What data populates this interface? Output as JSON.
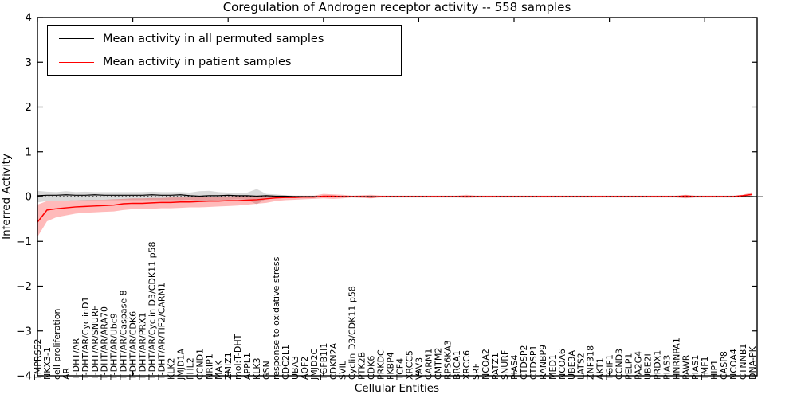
{
  "legend": {
    "items": [
      {
        "label": "Mean activity in all permuted samples",
        "color": "#000000"
      },
      {
        "label": "Mean activity in patient samples",
        "color": "#ff0000"
      }
    ]
  },
  "chart_data": {
    "type": "line",
    "title": "Coregulation of Androgen receptor activity -- 558 samples",
    "xlabel": "Cellular Entities",
    "ylabel": "Inferred Activity",
    "ylim": [
      -4,
      4
    ],
    "yticks": [
      4,
      3,
      2,
      1,
      0,
      -1,
      -2,
      -3,
      -4
    ],
    "xtick_step": 10,
    "grid": false,
    "legend_position": "upper left",
    "zero_line": {
      "style": "dotted",
      "color": "#000000",
      "y": 0
    },
    "categories": [
      "TMPRSS2",
      "NKX3-1",
      "cell proliferation",
      "AR",
      "T-DHT/AR",
      "T-DHT/AR/CyclinD1",
      "T-DHT/AR/SNURF",
      "T-DHT/AR/ARA70",
      "T-DHT/AR/Ubc9",
      "T-DHT/AR/Caspase 8",
      "T-DHT/AR/CDK6",
      "T-DHT/AR/PRX1",
      "T-DHT/AR/Cyclin D3/CDK11 p58",
      "T-DHT/AR/TIF2/CARM1",
      "KLK2",
      "JMJD1A",
      "FHL2",
      "CCND1",
      "NRIP1",
      "MAK",
      "ZMIZ1",
      "mol:T-DHT",
      "APPL1",
      "KLK3",
      "GSN",
      "response to oxidative stress",
      "CDC2L1",
      "UBA3",
      "AOF2",
      "JMJD2C",
      "TGFB1I1",
      "CDKN2A",
      "SVIL",
      "Cyclin D3/CDK11 p58",
      "PTK2B",
      "CDK6",
      "PRKDC",
      "FKBP4",
      "TCF4",
      "XRCC5",
      "VAV3",
      "CARM1",
      "CMTM2",
      "RPS6KA3",
      "BRCA1",
      "XRCC6",
      "SRF",
      "NCOA2",
      "PATZ1",
      "SNURF",
      "PIAS4",
      "CTDSP2",
      "CTDSP1",
      "RANBP9",
      "MED1",
      "NCOA6",
      "UBE3A",
      "LATS2",
      "ZNF318",
      "AKT1",
      "TGIF1",
      "CCND3",
      "PELP1",
      "PA2G4",
      "UBE2I",
      "PRDX1",
      "PIAS3",
      "HNRNPA1",
      "PAWR",
      "PIAS1",
      "TMF1",
      "HIP1",
      "CASP8",
      "NCOA4",
      "CTNNB1",
      "DNA-PK"
    ],
    "series": [
      {
        "name": "Mean activity in all permuted samples",
        "color": "#000000",
        "line_width": 1.2,
        "values": [
          0.02,
          0.03,
          0.03,
          0.04,
          0.03,
          0.03,
          0.04,
          0.03,
          0.03,
          0.03,
          0.03,
          0.03,
          0.04,
          0.03,
          0.03,
          0.04,
          0.02,
          0.01,
          0.02,
          0.02,
          0.03,
          0.02,
          0.02,
          0.01,
          0.02,
          0.01,
          0.01,
          0,
          0,
          0,
          0,
          0,
          0,
          0,
          0,
          0,
          0,
          0,
          0,
          0,
          0,
          0,
          0,
          0,
          0,
          0,
          0,
          0,
          0,
          0,
          0,
          0,
          0,
          0,
          0,
          0,
          0,
          0,
          0,
          0,
          0,
          0,
          0,
          0,
          0,
          0,
          0,
          0,
          0,
          0,
          0,
          0,
          0,
          0,
          0,
          0
        ],
        "band_fill": "rgba(0,0,0,0.15)",
        "band_lower": [
          -0.13,
          -0.1,
          -0.09,
          -0.1,
          -0.08,
          -0.09,
          -0.08,
          -0.08,
          -0.08,
          -0.08,
          -0.08,
          -0.08,
          -0.08,
          -0.08,
          -0.08,
          -0.08,
          -0.07,
          -0.1,
          -0.09,
          -0.08,
          -0.07,
          -0.06,
          -0.07,
          -0.17,
          -0.05,
          -0.04,
          -0.03,
          -0.02,
          -0.02,
          -0.02,
          -0.02,
          -0.02,
          -0.02,
          -0.02,
          -0.02,
          -0.02,
          -0.02,
          -0.02,
          -0.02,
          -0.02,
          -0.02,
          -0.02,
          -0.02,
          -0.02,
          -0.02,
          -0.02,
          -0.02,
          -0.02,
          -0.02,
          -0.02,
          -0.02,
          -0.02,
          -0.02,
          -0.02,
          -0.02,
          -0.02,
          -0.02,
          -0.02,
          -0.02,
          -0.02,
          -0.02,
          -0.02,
          -0.02,
          -0.02,
          -0.02,
          -0.02,
          -0.02,
          -0.02,
          -0.03,
          -0.02,
          -0.02,
          -0.02,
          -0.02,
          -0.02,
          -0.02,
          -0.02
        ],
        "band_upper": [
          0.13,
          0.11,
          0.1,
          0.12,
          0.1,
          0.11,
          0.1,
          0.1,
          0.1,
          0.1,
          0.1,
          0.1,
          0.11,
          0.1,
          0.1,
          0.1,
          0.09,
          0.12,
          0.13,
          0.1,
          0.09,
          0.08,
          0.09,
          0.17,
          0.06,
          0.05,
          0.03,
          0.02,
          0.02,
          0.02,
          0.02,
          0.02,
          0.02,
          0.02,
          0.02,
          0.02,
          0.02,
          0.02,
          0.02,
          0.02,
          0.02,
          0.02,
          0.02,
          0.02,
          0.02,
          0.02,
          0.02,
          0.02,
          0.02,
          0.02,
          0.02,
          0.02,
          0.02,
          0.02,
          0.02,
          0.02,
          0.02,
          0.02,
          0.02,
          0.02,
          0.02,
          0.02,
          0.02,
          0.02,
          0.02,
          0.02,
          0.02,
          0.02,
          0.03,
          0.02,
          0.02,
          0.02,
          0.02,
          0.02,
          0.02,
          0.02
        ]
      },
      {
        "name": "Mean activity in patient samples",
        "color": "#ff0000",
        "line_width": 1.5,
        "values": [
          -0.57,
          -0.3,
          -0.27,
          -0.25,
          -0.23,
          -0.22,
          -0.21,
          -0.2,
          -0.19,
          -0.16,
          -0.15,
          -0.15,
          -0.14,
          -0.13,
          -0.13,
          -0.12,
          -0.12,
          -0.11,
          -0.1,
          -0.1,
          -0.09,
          -0.09,
          -0.08,
          -0.07,
          -0.05,
          -0.03,
          -0.02,
          -0.02,
          -0.01,
          -0.01,
          0.01,
          0.01,
          0,
          0,
          0,
          -0.01,
          0,
          0,
          0,
          0,
          0,
          0,
          0,
          0,
          0,
          0,
          0,
          0,
          0,
          0,
          0,
          0,
          0,
          0,
          0,
          0,
          0,
          0,
          0,
          0,
          0,
          0,
          0,
          0,
          0,
          0,
          0,
          0,
          0.01,
          0,
          0,
          0,
          0,
          0,
          0.02,
          0.05
        ],
        "band_fill": "rgba(255,0,0,0.27)",
        "band_lower": [
          -0.9,
          -0.55,
          -0.46,
          -0.42,
          -0.38,
          -0.36,
          -0.35,
          -0.34,
          -0.33,
          -0.3,
          -0.28,
          -0.28,
          -0.27,
          -0.26,
          -0.26,
          -0.25,
          -0.24,
          -0.24,
          -0.23,
          -0.22,
          -0.21,
          -0.2,
          -0.18,
          -0.16,
          -0.14,
          -0.1,
          -0.08,
          -0.07,
          -0.06,
          -0.05,
          -0.04,
          -0.05,
          -0.04,
          -0.02,
          -0.03,
          -0.04,
          -0.02,
          -0.02,
          -0.02,
          -0.02,
          -0.02,
          -0.02,
          -0.02,
          -0.02,
          -0.02,
          -0.03,
          -0.02,
          -0.02,
          -0.02,
          -0.02,
          -0.02,
          -0.02,
          -0.02,
          -0.02,
          -0.02,
          -0.02,
          -0.02,
          -0.02,
          -0.02,
          -0.02,
          -0.02,
          -0.02,
          -0.02,
          -0.02,
          -0.02,
          -0.02,
          -0.02,
          -0.02,
          -0.04,
          -0.02,
          -0.02,
          -0.02,
          -0.02,
          -0.02,
          -0.01,
          0
        ],
        "band_upper": [
          -0.18,
          -0.1,
          -0.1,
          -0.09,
          -0.08,
          -0.08,
          -0.07,
          -0.07,
          -0.06,
          -0.05,
          -0.04,
          -0.04,
          -0.03,
          -0.03,
          -0.02,
          -0.02,
          -0.02,
          -0.01,
          0,
          0,
          0.01,
          0.01,
          0.02,
          0.02,
          0.03,
          0.02,
          0.02,
          0.02,
          0.02,
          0.02,
          0.06,
          0.05,
          0.04,
          0.02,
          0.03,
          0.04,
          0.02,
          0.02,
          0.02,
          0.02,
          0.02,
          0.02,
          0.02,
          0.02,
          0.02,
          0.04,
          0.02,
          0.02,
          0.02,
          0.02,
          0.02,
          0.02,
          0.02,
          0.02,
          0.02,
          0.02,
          0.02,
          0.02,
          0.02,
          0.02,
          0.02,
          0.02,
          0.02,
          0.02,
          0.02,
          0.02,
          0.02,
          0.02,
          0.04,
          0.02,
          0.02,
          0.02,
          0.02,
          0.02,
          0.04,
          0.1
        ]
      }
    ]
  }
}
